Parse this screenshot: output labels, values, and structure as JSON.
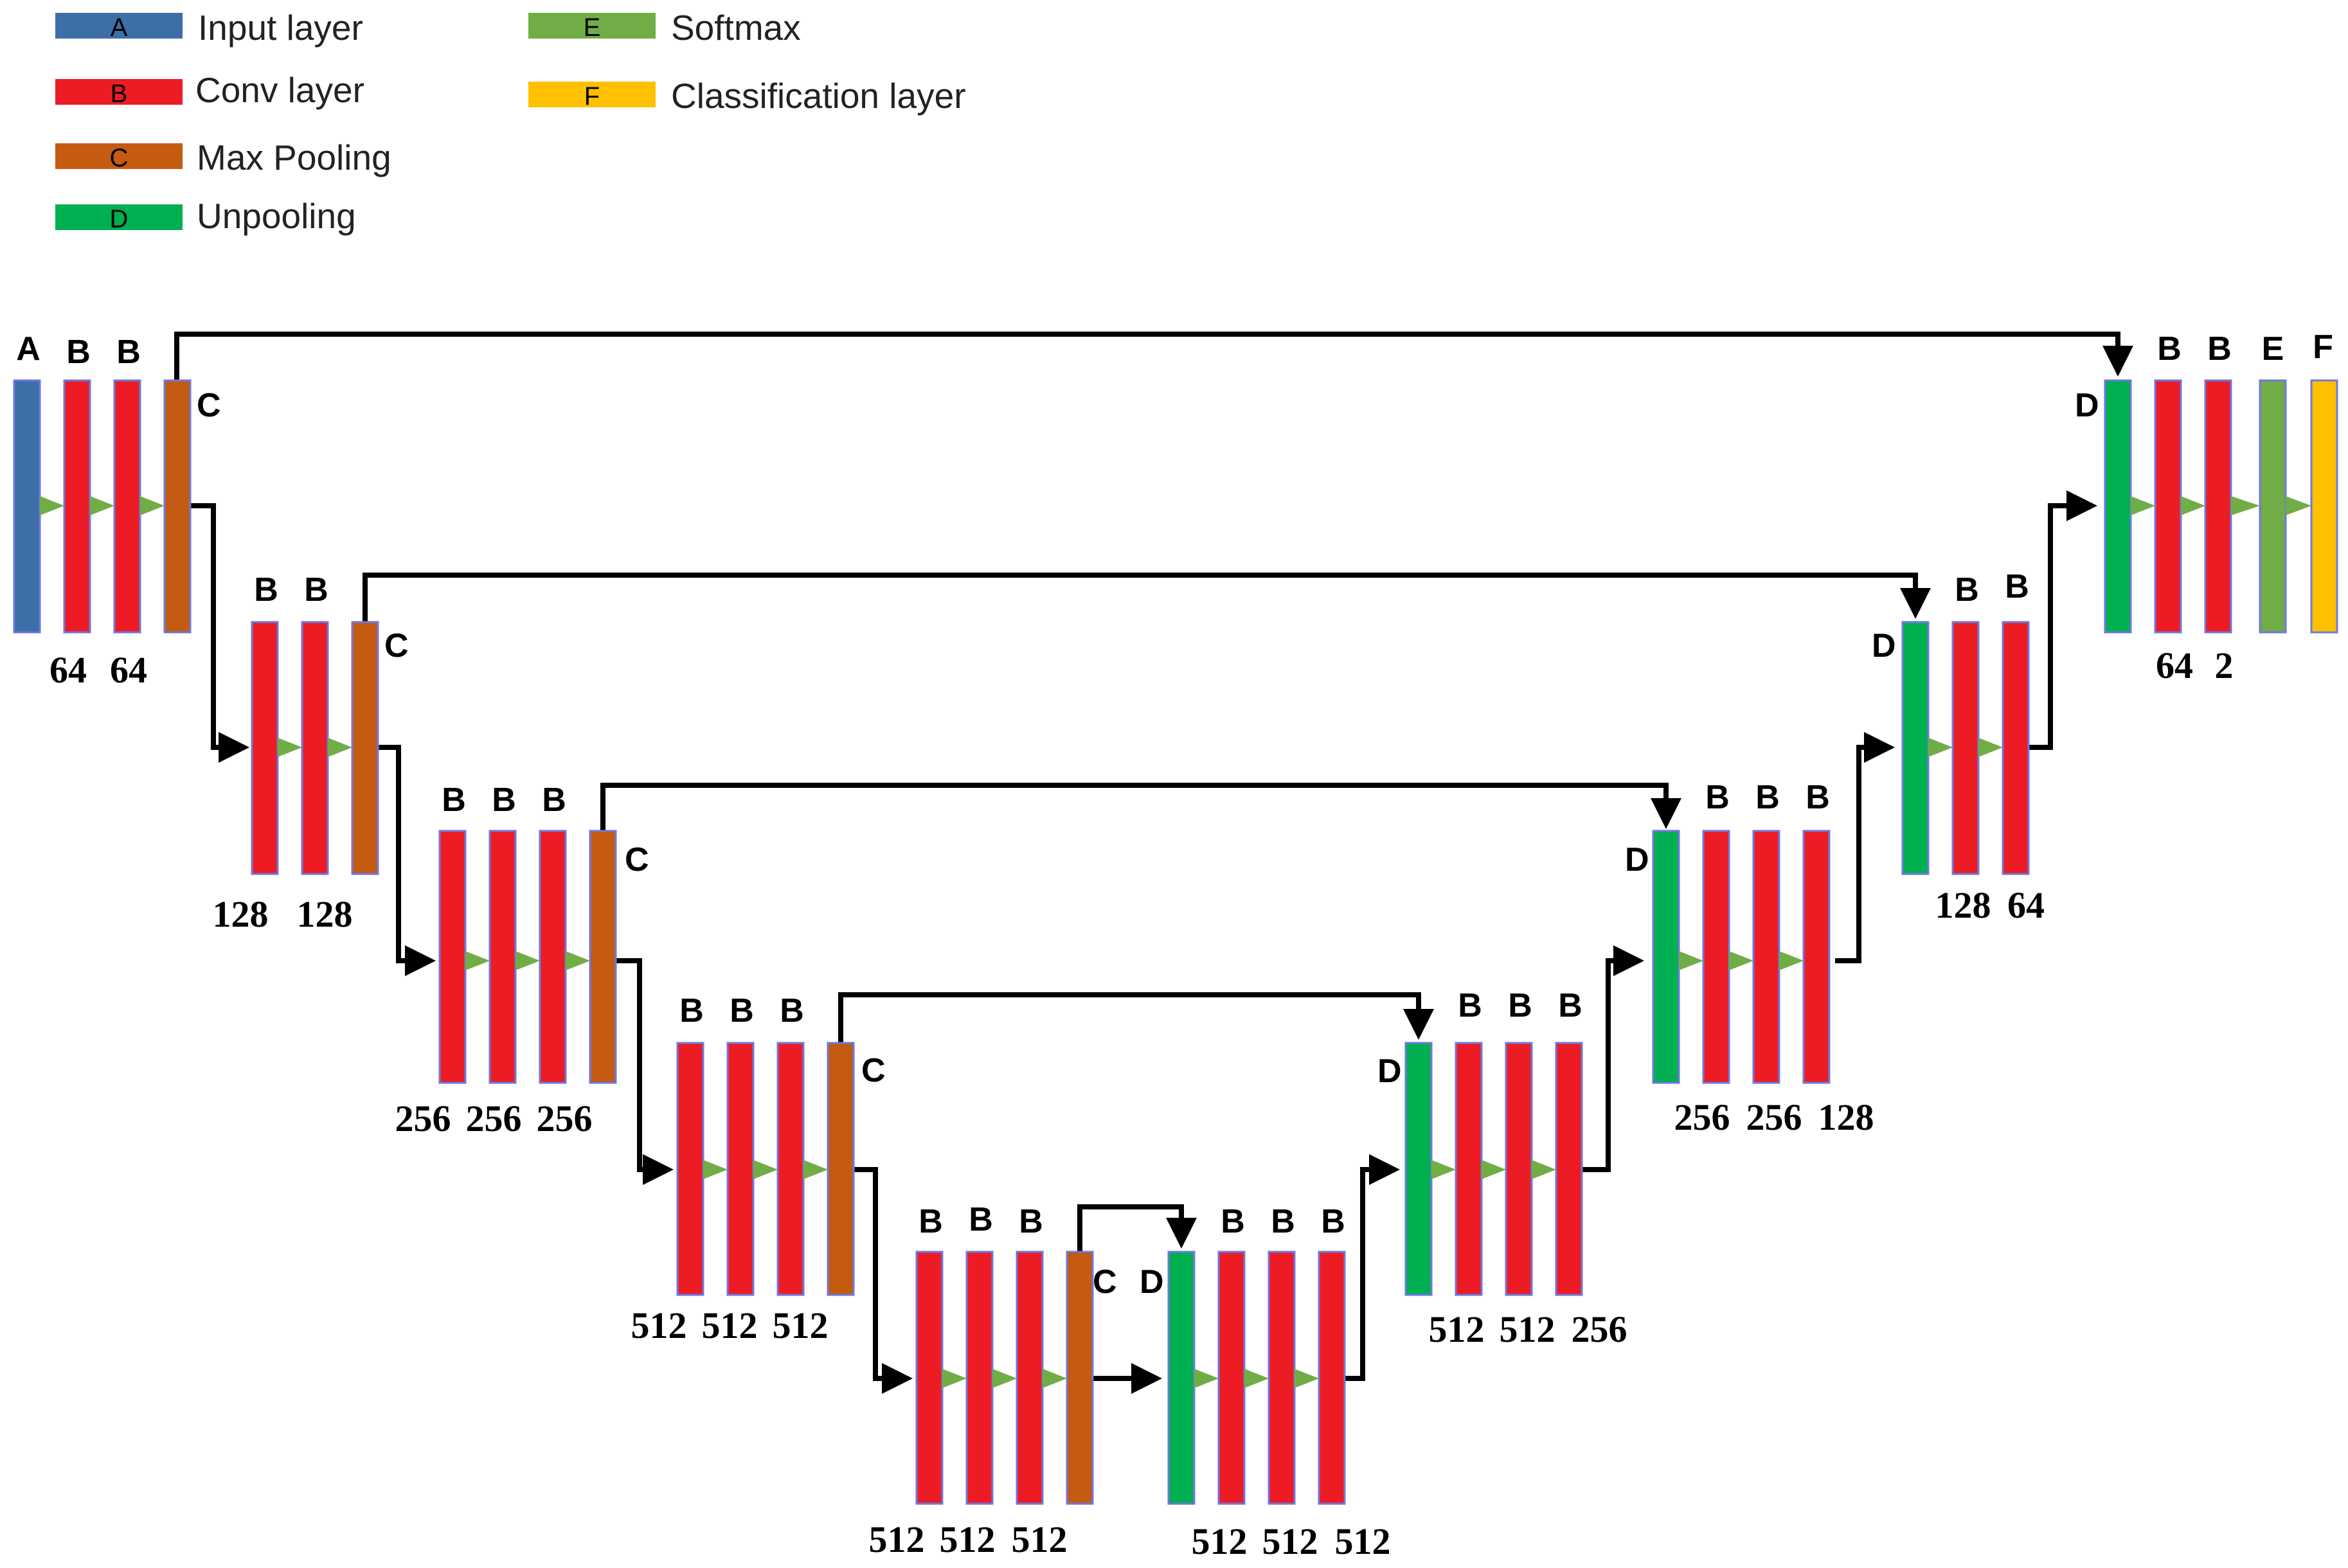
{
  "colors": {
    "A": "#3d6ea7",
    "B": "#ed1c24",
    "C": "#c55a11",
    "D": "#00b050",
    "E": "#70ad47",
    "F": "#ffc000",
    "arrow_marker": "#70ad47",
    "bar_border": "#6d78e0"
  },
  "legend": [
    {
      "code": "A",
      "label": "Input layer"
    },
    {
      "code": "B",
      "label": "Conv layer"
    },
    {
      "code": "C",
      "label": "Max Pooling"
    },
    {
      "code": "D",
      "label": "Unpooling"
    },
    {
      "code": "E",
      "label": "Softmax"
    },
    {
      "code": "F",
      "label": "Classification layer"
    }
  ],
  "encoder": [
    {
      "stage": 1,
      "layers": [
        "A",
        "B",
        "B",
        "C"
      ],
      "channels": [
        "64",
        "64"
      ]
    },
    {
      "stage": 2,
      "layers": [
        "B",
        "B",
        "C"
      ],
      "channels": [
        "128",
        "128"
      ]
    },
    {
      "stage": 3,
      "layers": [
        "B",
        "B",
        "B",
        "C"
      ],
      "channels": [
        "256",
        "256",
        "256"
      ]
    },
    {
      "stage": 4,
      "layers": [
        "B",
        "B",
        "B",
        "C"
      ],
      "channels": [
        "512",
        "512",
        "512"
      ]
    },
    {
      "stage": 5,
      "layers": [
        "B",
        "B",
        "B",
        "C"
      ],
      "channels": [
        "512",
        "512",
        "512"
      ]
    }
  ],
  "decoder": [
    {
      "stage": 5,
      "layers": [
        "D",
        "B",
        "B",
        "B"
      ],
      "channels": [
        "512",
        "512",
        "512"
      ]
    },
    {
      "stage": 4,
      "layers": [
        "D",
        "B",
        "B",
        "B"
      ],
      "channels": [
        "512",
        "512",
        "256"
      ]
    },
    {
      "stage": 3,
      "layers": [
        "D",
        "B",
        "B",
        "B"
      ],
      "channels": [
        "256",
        "256",
        "128"
      ]
    },
    {
      "stage": 2,
      "layers": [
        "D",
        "B",
        "B"
      ],
      "channels": [
        "128",
        "64"
      ]
    },
    {
      "stage": 1,
      "layers": [
        "D",
        "B",
        "B",
        "E",
        "F"
      ],
      "channels": [
        "64",
        "2"
      ]
    }
  ]
}
